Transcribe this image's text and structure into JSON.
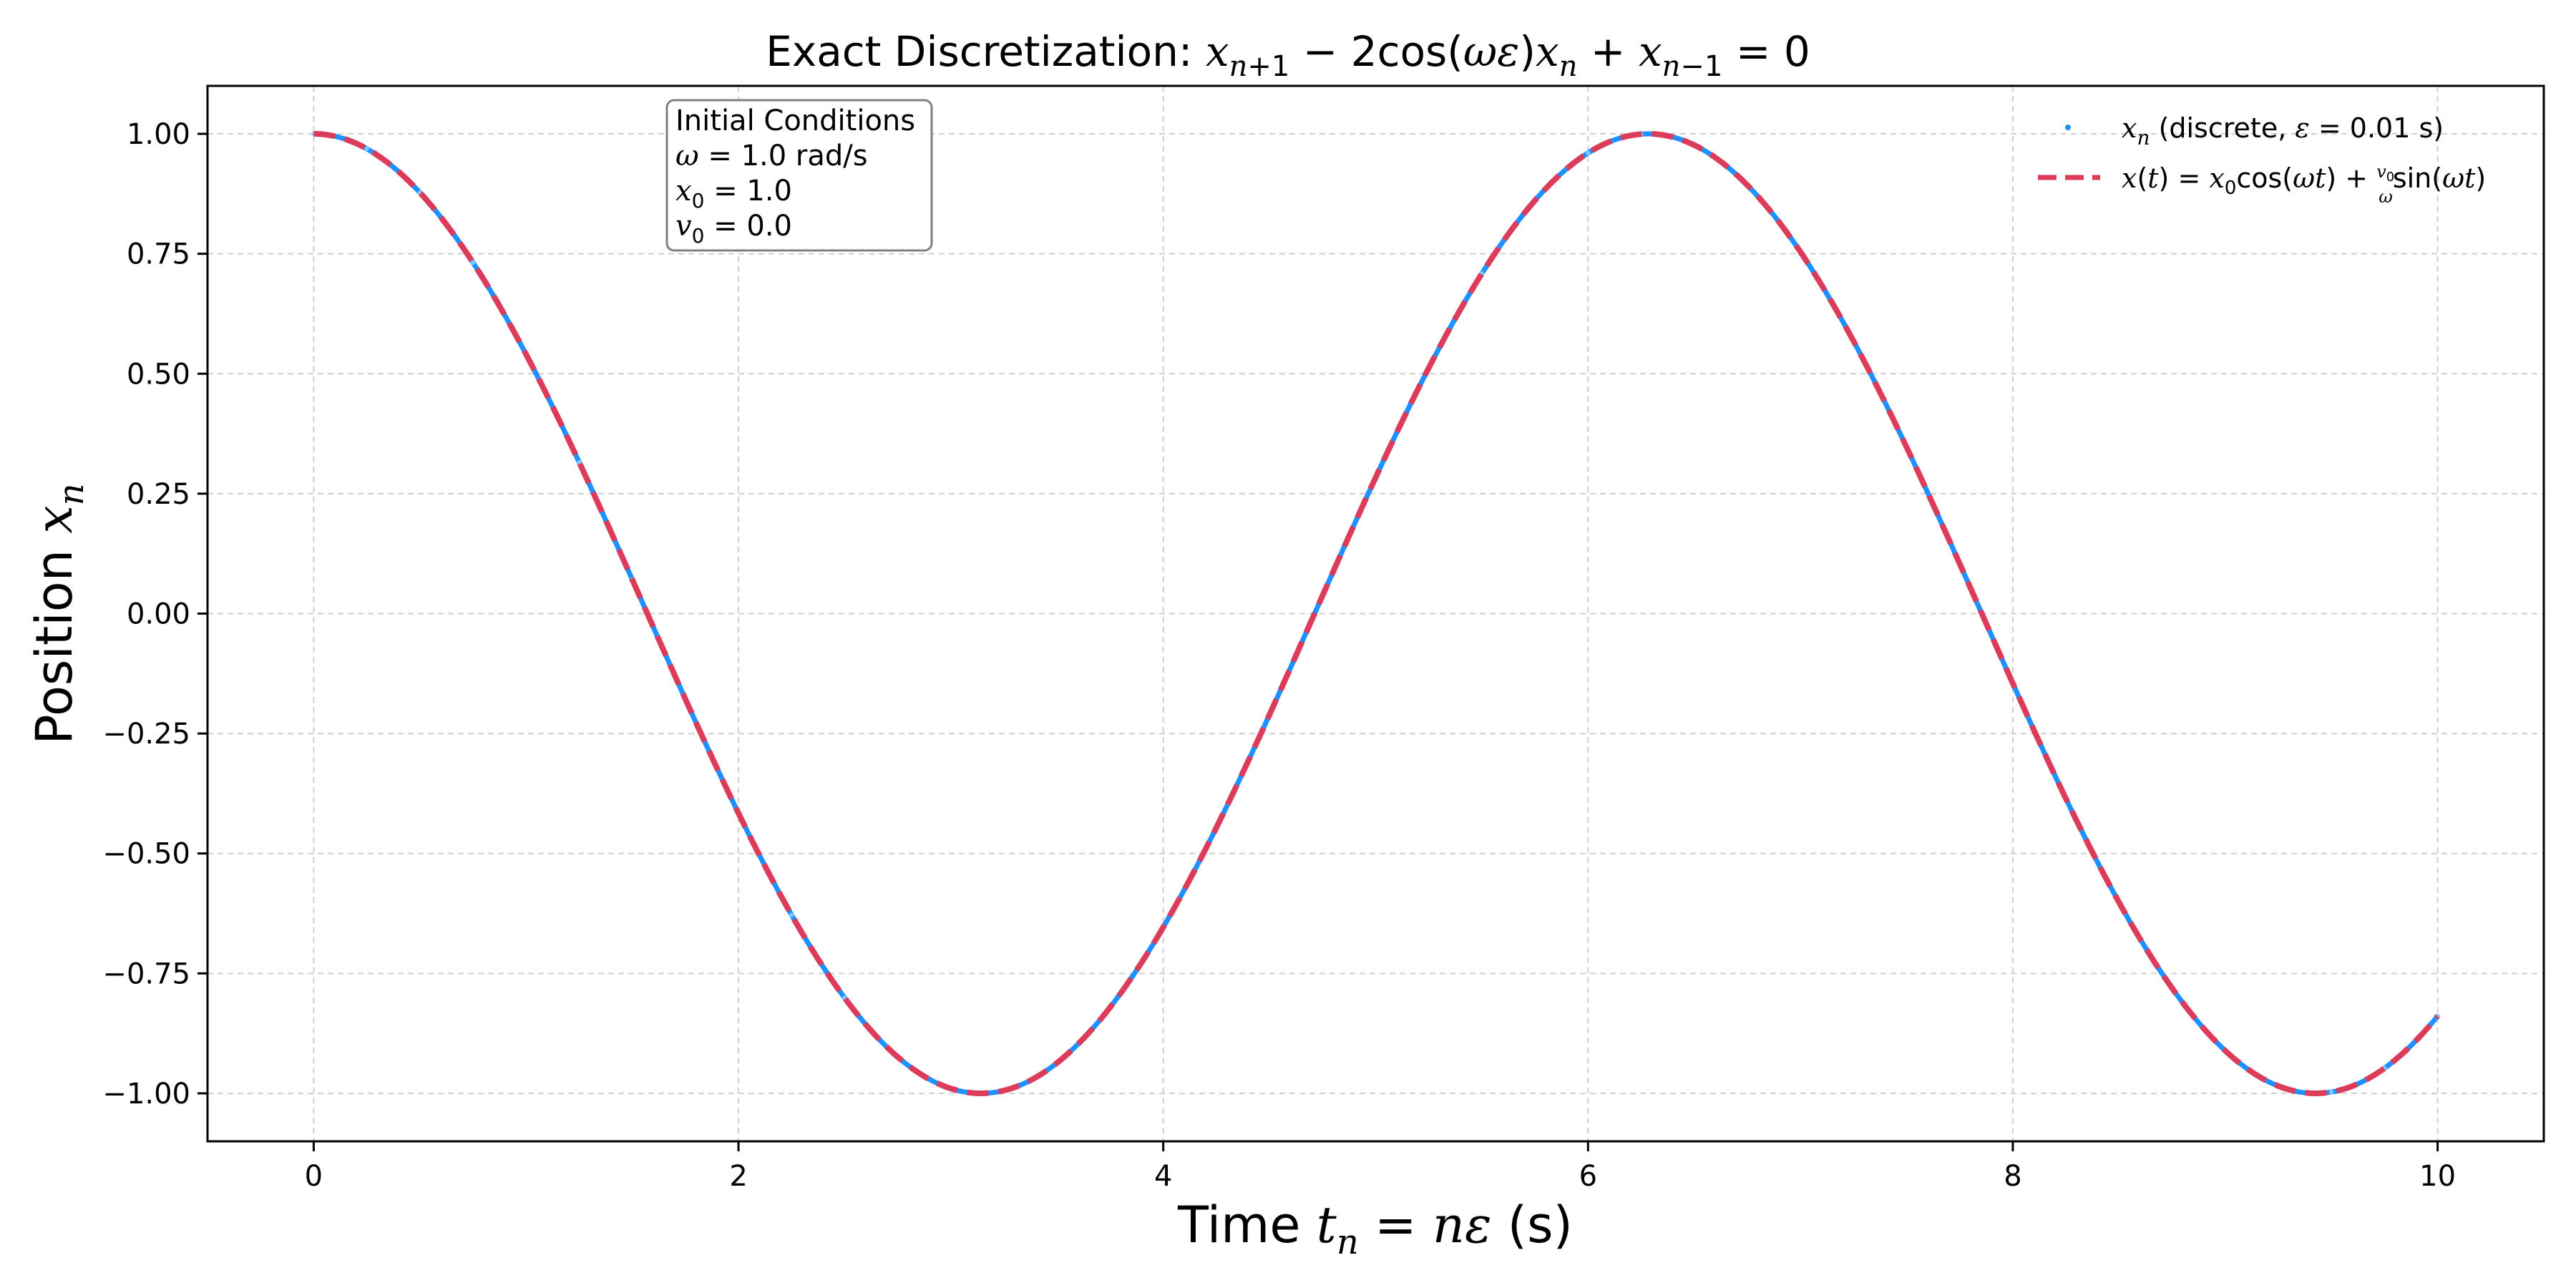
{
  "chart_data": {
    "type": "line",
    "title": "Exact Discretization: x_{n+1} − 2cos(ωε)x_n + x_{n−1} = 0",
    "xlabel": "Time t_n = nε (s)",
    "ylabel": "Position x_n",
    "xlim": [
      -0.5,
      10.5
    ],
    "ylim": [
      -1.1,
      1.1
    ],
    "x_ticks": [
      "0",
      "2",
      "4",
      "6",
      "8",
      "10"
    ],
    "y_ticks": [
      "1.00",
      "0.75",
      "0.50",
      "0.25",
      "0.00",
      "−0.25",
      "−0.50",
      "−0.75",
      "−1.00"
    ],
    "grid": true,
    "legend_position": "top-right",
    "series": [
      {
        "name": "x_n (discrete, ε = 0.01 s)",
        "style": "dots",
        "color": "#1e90ff",
        "x_start": 0,
        "x_end": 10,
        "step": 0.01,
        "values_sampled": {
          "x": [
            0,
            1,
            2,
            3,
            3.14,
            4,
            5,
            6,
            6.28,
            7,
            8,
            9,
            9.42,
            10
          ],
          "y": [
            1.0,
            0.54,
            -0.416,
            -0.99,
            -1.0,
            -0.654,
            0.284,
            0.96,
            1.0,
            0.754,
            -0.146,
            -0.911,
            -1.0,
            -0.839
          ]
        }
      },
      {
        "name": "x(t) = x₀cos(ωt) + (v₀/ω)sin(ωt)",
        "style": "dashed",
        "color": "#dc3c5a",
        "x_start": 0,
        "x_end": 10,
        "values_sampled": {
          "x": [
            0,
            1,
            2,
            3,
            3.14,
            4,
            5,
            6,
            6.28,
            7,
            8,
            9,
            9.42,
            10
          ],
          "y": [
            1.0,
            0.54,
            -0.416,
            -0.99,
            -1.0,
            -0.654,
            0.284,
            0.96,
            1.0,
            0.754,
            -0.146,
            -0.911,
            -1.0,
            -0.839
          ]
        }
      }
    ],
    "annotation": {
      "title": "Initial Conditions",
      "omega": "ω = 1.0 rad/s",
      "x0": "x₀ = 1.0",
      "v0": "v₀ = 0.0"
    }
  },
  "params": {
    "omega": 1.0,
    "x0": 1.0,
    "v0": 0.0,
    "epsilon": 0.01
  }
}
